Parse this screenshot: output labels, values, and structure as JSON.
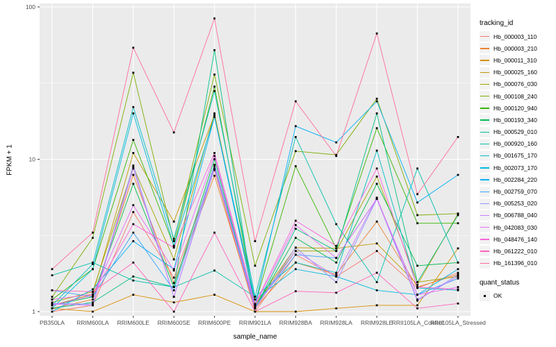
{
  "figure": {
    "background": "#FFFFFF",
    "panel_background": "#EBEBEB",
    "gridline_color": "#FFFFFF",
    "tick_label_color": "#4D4D4D",
    "axis_title_color": "#000000",
    "legend_key_background": "#F2F2F2",
    "point_color": "#000000"
  },
  "chart_data": {
    "type": "line",
    "title": "",
    "xlabel": "sample_name",
    "ylabel": "FPKM + 1",
    "y_scale": "log10",
    "ylim": [
      1,
      100
    ],
    "y_major_ticks": [
      1,
      10,
      100
    ],
    "y_tick_labels": [
      "1",
      "10",
      "100"
    ],
    "y_minor_gridlines": [
      3.162,
      31.623
    ],
    "grid": true,
    "legend_title": "tracking_id",
    "legend_position": "right",
    "point_marker": "black-square",
    "quant_legend": {
      "title": "quant_status",
      "label": "OK",
      "marker": "black-square"
    },
    "categories": [
      "PB350LA",
      "RRIM600LA",
      "RRIM600LE",
      "RRIM600SE",
      "RRIM600PE",
      "RRIM901LA",
      "RRIM928BA",
      "RRIM928LA",
      "RRIM928LE",
      "RRII105LA_Control",
      "RRII105LA_Stressed"
    ],
    "series": [
      {
        "name": "Hb_000003_110",
        "color": "#F8766D",
        "values": [
          1.0,
          1.1,
          4.5,
          1.67,
          8.5,
          1.0,
          2.36,
          1.7,
          2.5,
          1.43,
          1.8
        ]
      },
      {
        "name": "Hb_000003_210",
        "color": "#EA8331",
        "values": [
          1.05,
          1.2,
          7.9,
          1.54,
          7.8,
          1.05,
          2.1,
          1.75,
          3.9,
          1.45,
          1.75
        ]
      },
      {
        "name": "Hb_000011_310",
        "color": "#D89000",
        "values": [
          1.05,
          1.0,
          1.29,
          1.15,
          1.29,
          1.0,
          1.0,
          1.05,
          1.1,
          1.1,
          2.6
        ]
      },
      {
        "name": "Hb_000025_160",
        "color": "#C09B00",
        "values": [
          1.1,
          1.3,
          11.0,
          3.9,
          19.5,
          1.12,
          2.63,
          2.6,
          2.8,
          1.5,
          4.4
        ]
      },
      {
        "name": "Hb_000076_030",
        "color": "#A3A500",
        "values": [
          1.15,
          1.35,
          8.9,
          2.2,
          20.0,
          1.1,
          2.5,
          2.5,
          7.7,
          1.56,
          1.7
        ]
      },
      {
        "name": "Hb_000108_240",
        "color": "#7CAE00",
        "values": [
          1.25,
          3.05,
          37.0,
          2.9,
          36.0,
          2.0,
          11.3,
          10.7,
          25.0,
          4.3,
          4.4
        ]
      },
      {
        "name": "Hb_000120_940",
        "color": "#39B600",
        "values": [
          1.2,
          1.9,
          13.4,
          2.7,
          30.0,
          1.12,
          9.0,
          2.6,
          16.0,
          3.8,
          3.8
        ]
      },
      {
        "name": "Hb_000193_340",
        "color": "#00BB4E",
        "values": [
          1.1,
          1.25,
          6.9,
          1.45,
          10.0,
          1.05,
          3.05,
          2.1,
          6.9,
          2.0,
          2.1
        ]
      },
      {
        "name": "Hb_000529_010",
        "color": "#00C087",
        "values": [
          1.05,
          1.15,
          1.7,
          1.45,
          52.0,
          1.05,
          3.5,
          2.5,
          20.0,
          1.56,
          4.3
        ]
      },
      {
        "name": "Hb_000920_160",
        "color": "#00C1AB",
        "values": [
          1.73,
          2.1,
          1.6,
          1.45,
          1.86,
          1.25,
          14.0,
          3.75,
          1.56,
          8.7,
          2.1
        ]
      },
      {
        "name": "Hb_001675_170",
        "color": "#00BFC4",
        "values": [
          1.1,
          2.05,
          22.0,
          3.0,
          28.0,
          1.25,
          2.1,
          1.8,
          11.4,
          1.43,
          1.38
        ]
      },
      {
        "name": "Hb_002073_170",
        "color": "#00BAE0",
        "values": [
          1.05,
          1.9,
          20.0,
          2.7,
          19.0,
          1.2,
          1.9,
          1.7,
          1.38,
          1.29,
          1.9
        ]
      },
      {
        "name": "Hb_002284_220",
        "color": "#00B0F6",
        "values": [
          1.0,
          1.4,
          2.9,
          1.9,
          19.0,
          1.1,
          16.5,
          12.9,
          24.0,
          5.2,
          7.9
        ]
      },
      {
        "name": "Hb_002759_070",
        "color": "#35A2FF",
        "values": [
          1.38,
          1.25,
          3.3,
          1.38,
          9.2,
          1.08,
          2.36,
          2.25,
          5.5,
          1.29,
          1.65
        ]
      },
      {
        "name": "Hb_005253_020",
        "color": "#9590FF",
        "values": [
          1.13,
          1.12,
          9.1,
          1.25,
          8.7,
          1.05,
          2.63,
          1.56,
          5.5,
          1.18,
          1.75
        ]
      },
      {
        "name": "Hb_006788_040",
        "color": "#C77CFF",
        "values": [
          1.12,
          1.1,
          8.7,
          1.25,
          9.0,
          1.05,
          2.5,
          1.7,
          5.6,
          1.2,
          1.7
        ]
      },
      {
        "name": "Hb_042083_030",
        "color": "#E76BF3",
        "values": [
          1.1,
          1.28,
          5.0,
          1.86,
          10.5,
          1.1,
          3.7,
          2.25,
          5.5,
          1.29,
          1.45
        ]
      },
      {
        "name": "Hb_048476_140",
        "color": "#FA62DB",
        "values": [
          1.2,
          1.3,
          3.75,
          2.63,
          11.0,
          1.12,
          3.95,
          2.7,
          8.7,
          1.45,
          1.4
        ]
      },
      {
        "name": "Hb_061222_010",
        "color": "#FF62BC",
        "values": [
          1.38,
          1.35,
          2.1,
          1.0,
          3.3,
          1.0,
          1.36,
          1.33,
          1.8,
          1.05,
          1.13
        ]
      },
      {
        "name": "Hb_161396_010",
        "color": "#FF6A98",
        "values": [
          1.9,
          3.3,
          54.0,
          15.0,
          84.0,
          2.9,
          24.0,
          10.5,
          67.0,
          5.9,
          14.0
        ]
      }
    ]
  }
}
